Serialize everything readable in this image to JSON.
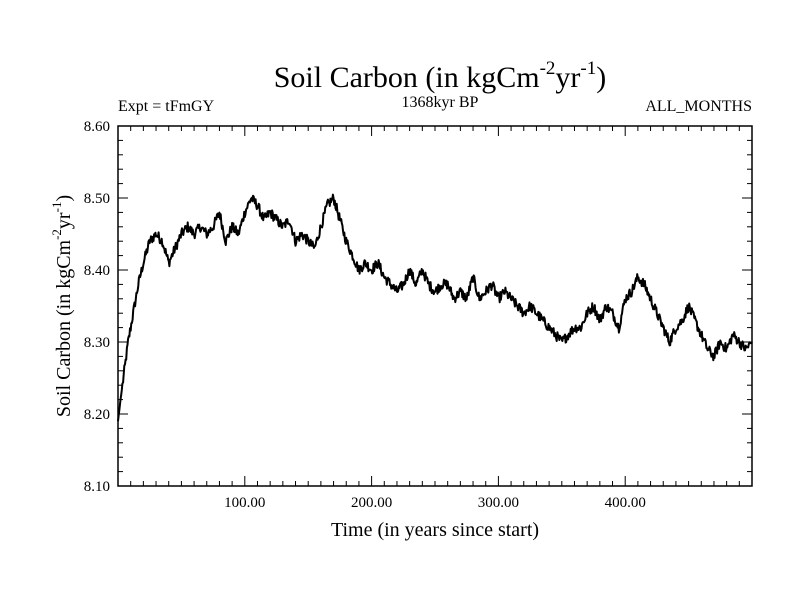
{
  "chart_data": {
    "type": "line",
    "title": {
      "main": "Soil Carbon (in kgCm",
      "sup1": "-2",
      "mid": "yr",
      "sup2": "-1",
      "end": ")"
    },
    "left_note": "Expt = tFmGY",
    "center_note": "1368kyr BP",
    "right_note": "ALL_MONTHS",
    "xlabel": "Time (in years since start)",
    "ylabel": {
      "main": "Soil Carbon (in kgCm",
      "sup1": "-2",
      "mid": "yr",
      "sup2": "-1",
      "end": ")"
    },
    "xlim": [
      0,
      500
    ],
    "ylim": [
      8.1,
      8.6
    ],
    "x_major_ticks": [
      100,
      200,
      300,
      400
    ],
    "x_tick_labels": [
      "100.00",
      "200.00",
      "300.00",
      "400.00"
    ],
    "y_major_ticks": [
      8.1,
      8.2,
      8.3,
      8.4,
      8.5,
      8.6
    ],
    "y_tick_labels": [
      "8.10",
      "8.20",
      "8.30",
      "8.40",
      "8.50",
      "8.60"
    ],
    "series": [
      {
        "name": "Soil Carbon",
        "color": "#000000",
        "x": [
          0,
          2,
          5,
          8,
          12,
          16,
          20,
          25,
          30,
          35,
          40,
          45,
          50,
          55,
          60,
          65,
          70,
          75,
          80,
          85,
          90,
          95,
          100,
          105,
          110,
          115,
          120,
          125,
          130,
          135,
          140,
          145,
          150,
          155,
          160,
          165,
          170,
          175,
          180,
          185,
          190,
          195,
          200,
          205,
          210,
          215,
          220,
          225,
          230,
          235,
          240,
          245,
          250,
          255,
          260,
          265,
          270,
          275,
          280,
          285,
          290,
          295,
          300,
          305,
          310,
          315,
          320,
          325,
          330,
          335,
          340,
          345,
          350,
          355,
          360,
          365,
          370,
          375,
          380,
          385,
          390,
          395,
          400,
          405,
          410,
          415,
          420,
          425,
          430,
          435,
          440,
          445,
          450,
          455,
          460,
          465,
          470,
          475,
          480,
          485,
          490,
          495,
          500
        ],
        "values": [
          8.19,
          8.22,
          8.26,
          8.3,
          8.34,
          8.38,
          8.41,
          8.44,
          8.45,
          8.44,
          8.41,
          8.43,
          8.45,
          8.46,
          8.45,
          8.46,
          8.45,
          8.46,
          8.48,
          8.44,
          8.46,
          8.45,
          8.48,
          8.5,
          8.49,
          8.47,
          8.48,
          8.47,
          8.46,
          8.47,
          8.44,
          8.45,
          8.44,
          8.43,
          8.46,
          8.49,
          8.5,
          8.47,
          8.44,
          8.42,
          8.4,
          8.41,
          8.4,
          8.41,
          8.39,
          8.38,
          8.37,
          8.38,
          8.4,
          8.38,
          8.4,
          8.38,
          8.37,
          8.38,
          8.38,
          8.36,
          8.37,
          8.36,
          8.39,
          8.36,
          8.37,
          8.38,
          8.36,
          8.37,
          8.36,
          8.35,
          8.34,
          8.35,
          8.34,
          8.33,
          8.32,
          8.31,
          8.3,
          8.31,
          8.32,
          8.32,
          8.34,
          8.35,
          8.33,
          8.35,
          8.34,
          8.32,
          8.36,
          8.37,
          8.39,
          8.38,
          8.36,
          8.34,
          8.32,
          8.3,
          8.32,
          8.33,
          8.35,
          8.33,
          8.31,
          8.29,
          8.28,
          8.3,
          8.29,
          8.31,
          8.3,
          8.29,
          8.3
        ]
      }
    ]
  }
}
